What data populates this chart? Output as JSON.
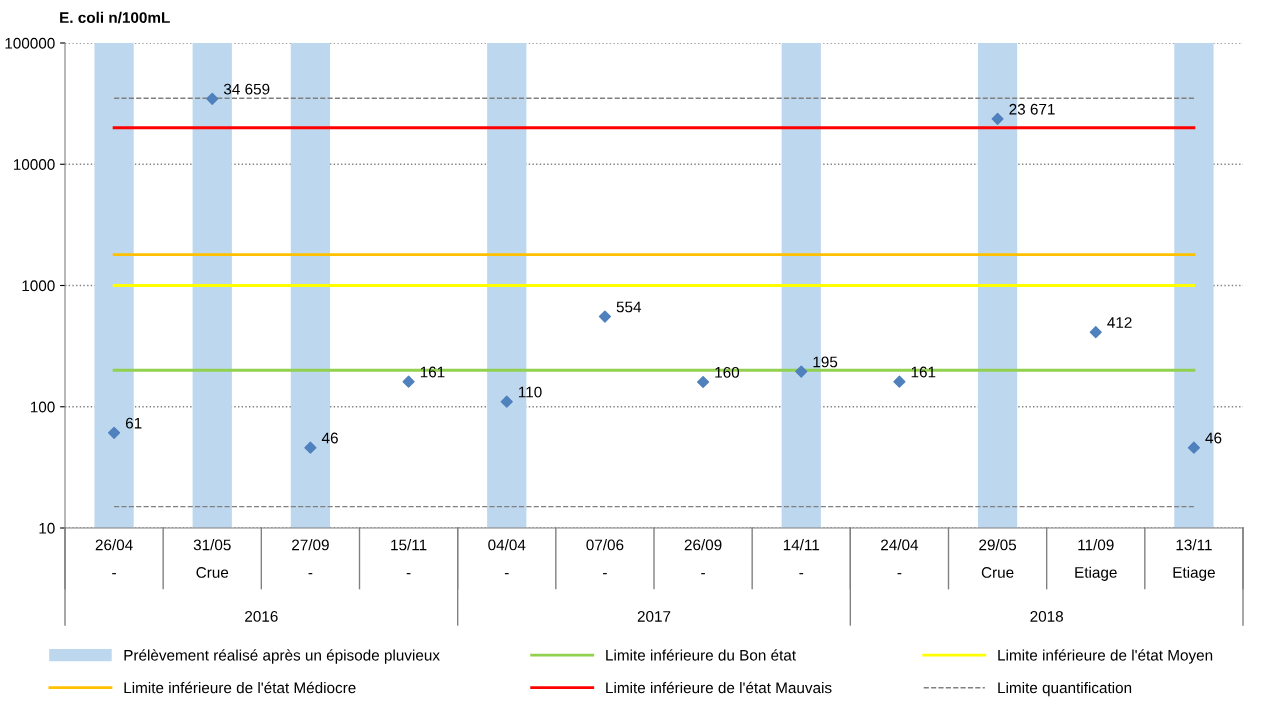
{
  "chart_data": {
    "type": "scatter",
    "ylabel": "E. coli n/100mL",
    "categories": [
      "26/04\n-",
      "31/05\nCrue",
      "27/09\n-",
      "15/11\n-",
      "04/04\n-",
      "07/06\n-",
      "26/09\n-",
      "14/11\n-",
      "24/04\n-",
      "29/05\nCrue",
      "11/09\nEtiage",
      "13/11\nEtiage"
    ],
    "series": [
      {
        "type": "bar",
        "name": "Prélèvement réalisé après un épisode pluvieux",
        "color": "#bdd7ee",
        "values": [
          100000,
          100000,
          100000,
          null,
          100000,
          null,
          null,
          100000,
          null,
          100000,
          null,
          100000
        ]
      },
      {
        "color": "#4f81bd",
        "marker": "diamond",
        "values": [
          61,
          34659,
          46,
          161,
          110,
          554,
          160,
          195,
          161,
          23671,
          412,
          46
        ],
        "value_labels": [
          "61",
          "34 659",
          "46",
          "161",
          "110",
          "554",
          "160",
          "195",
          "161",
          "23 671",
          "412",
          "46"
        ]
      }
    ],
    "ref_lines": [
      {
        "axis": "y",
        "value": 200,
        "label": "Limite inférieure du Bon état",
        "color": "#92d050"
      },
      {
        "axis": "y",
        "value": 1000,
        "label": "Limite inférieure de l'état Moyen",
        "color": "#ffff00"
      },
      {
        "axis": "y",
        "value": 1800,
        "label": "Limite inférieure de l'état Médiocre",
        "color": "#ffc000"
      },
      {
        "axis": "y",
        "value": 20000,
        "label": "Limite inférieure de l'état Mauvais",
        "color": "#ff0000"
      },
      {
        "axis": "y",
        "value": 35000,
        "label": "Limite quantification",
        "color": "#808080",
        "line_style": "dashed"
      },
      {
        "axis": "y",
        "value": 15,
        "label": null,
        "color": "#808080",
        "line_style": "dashed"
      }
    ],
    "annotations": [
      "2016",
      "2017",
      "2018"
    ],
    "log": "y",
    "ylim": [
      10,
      100000
    ],
    "yticks": [
      10,
      100,
      1000,
      10000,
      100000
    ],
    "grid": "y",
    "legend": "bottom"
  }
}
